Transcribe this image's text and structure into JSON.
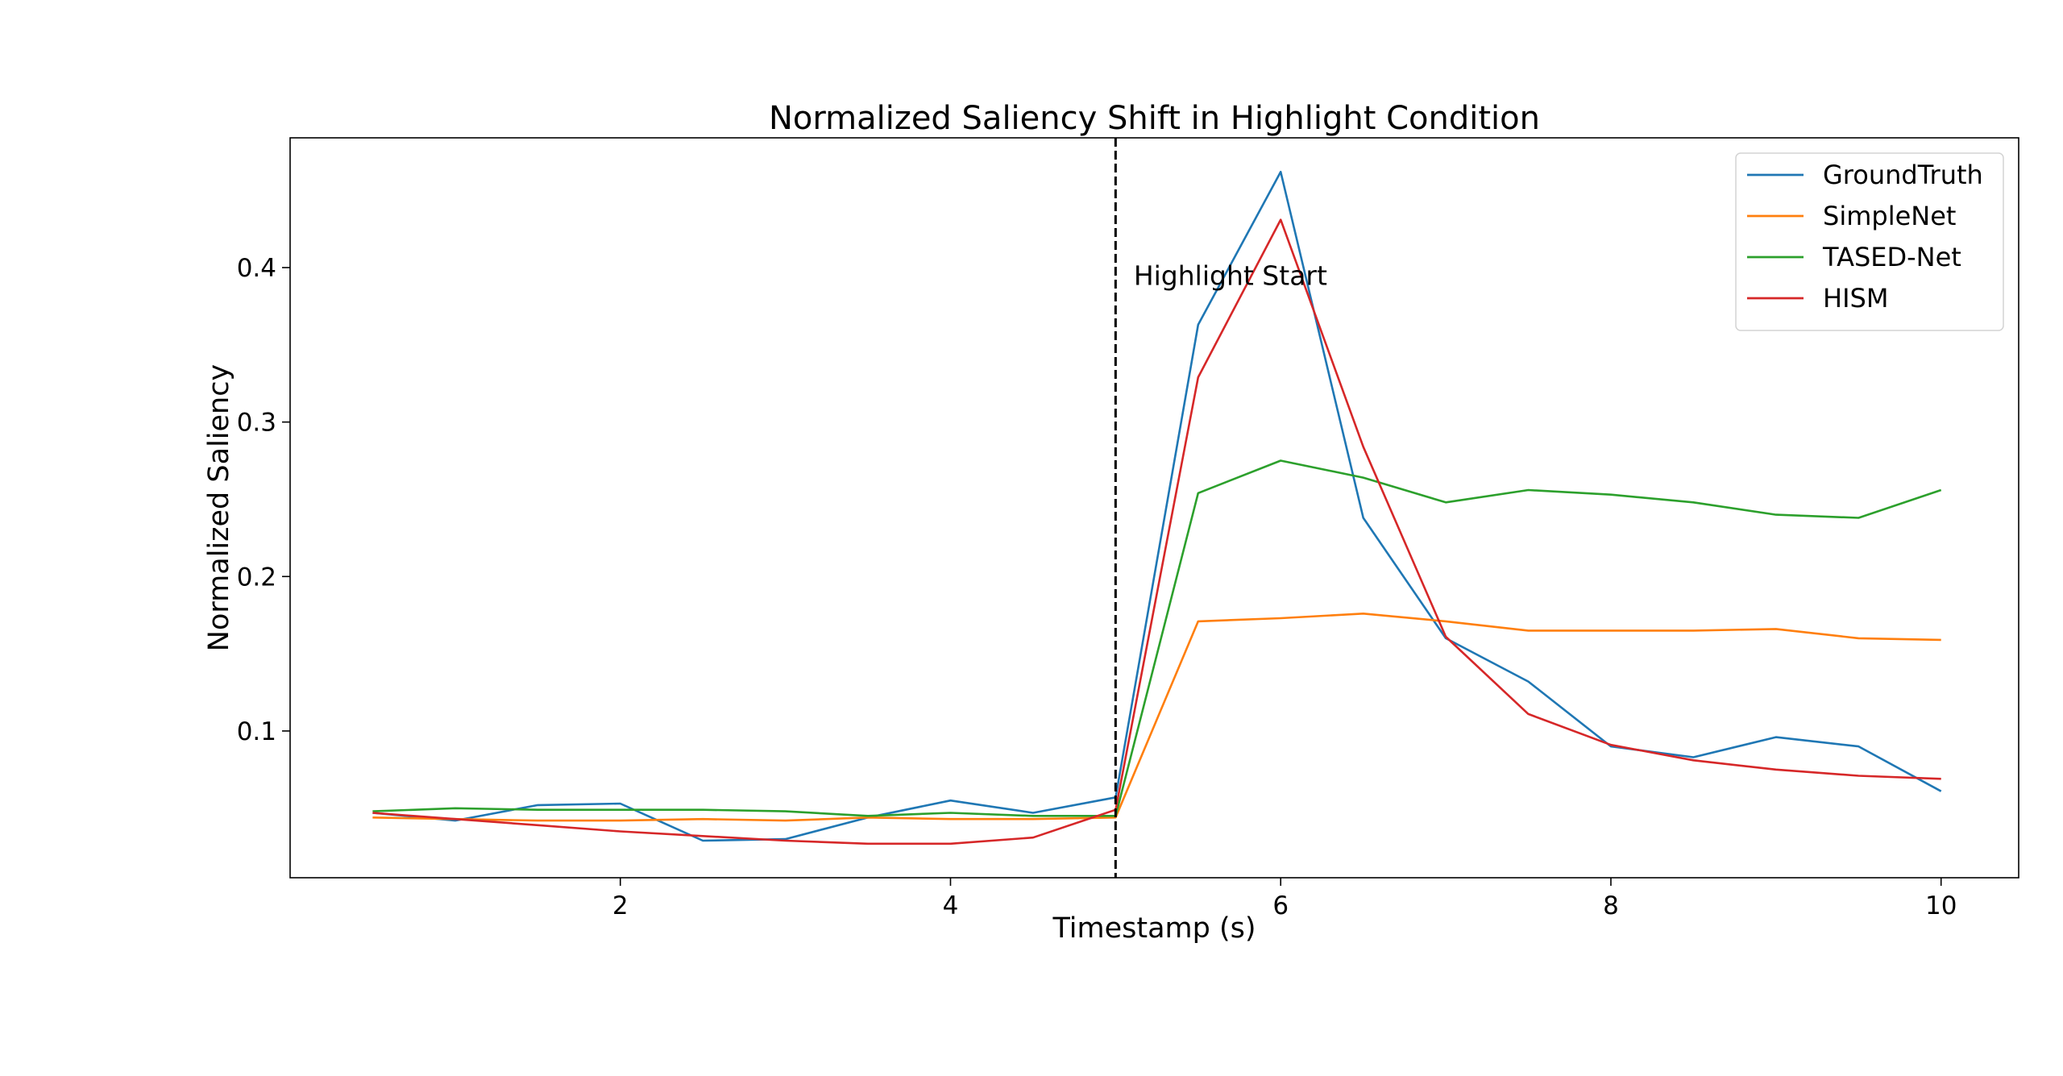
{
  "chart_data": {
    "type": "line",
    "title": "Normalized Saliency Shift in Highlight Condition",
    "xlabel": "Timestamp (s)",
    "ylabel": "Normalized Saliency",
    "xlim": [
      0.0,
      10.47
    ],
    "ylim": [
      0.005,
      0.484
    ],
    "xticks": [
      2,
      4,
      6,
      8,
      10
    ],
    "xtick_labels": [
      "2",
      "4",
      "6",
      "8",
      "10"
    ],
    "yticks": [
      0.1,
      0.2,
      0.3,
      0.4
    ],
    "ytick_labels": [
      "0.1",
      "0.2",
      "0.3",
      "0.4"
    ],
    "grid": false,
    "legend_position": "top-right",
    "x": [
      0.5,
      1.0,
      1.5,
      2.0,
      2.5,
      3.0,
      3.5,
      4.0,
      4.5,
      5.0,
      5.5,
      6.0,
      6.5,
      7.0,
      7.5,
      8.0,
      8.5,
      9.0,
      9.5,
      10.0
    ],
    "series": [
      {
        "name": "GroundTruth",
        "color": "#1f77b4",
        "values": [
          0.047,
          0.042,
          0.052,
          0.053,
          0.029,
          0.03,
          0.044,
          0.055,
          0.047,
          0.057,
          0.363,
          0.462,
          0.238,
          0.16,
          0.132,
          0.09,
          0.083,
          0.096,
          0.09,
          0.061
        ]
      },
      {
        "name": "SimpleNet",
        "color": "#ff7f0e",
        "values": [
          0.044,
          0.043,
          0.042,
          0.042,
          0.043,
          0.042,
          0.044,
          0.043,
          0.043,
          0.044,
          0.171,
          0.173,
          0.176,
          0.171,
          0.165,
          0.165,
          0.165,
          0.166,
          0.16,
          0.159
        ]
      },
      {
        "name": "TASED-Net",
        "color": "#2ca02c",
        "values": [
          0.048,
          0.05,
          0.049,
          0.049,
          0.049,
          0.048,
          0.045,
          0.047,
          0.045,
          0.045,
          0.254,
          0.275,
          0.264,
          0.248,
          0.256,
          0.253,
          0.248,
          0.24,
          0.238,
          0.256
        ]
      },
      {
        "name": "HISM",
        "color": "#d62728",
        "values": [
          0.047,
          0.043,
          0.039,
          0.035,
          0.032,
          0.029,
          0.027,
          0.027,
          0.031,
          0.049,
          0.329,
          0.431,
          0.284,
          0.161,
          0.111,
          0.091,
          0.081,
          0.075,
          0.071,
          0.069
        ]
      }
    ],
    "vline": {
      "x": 5.0,
      "style": "dashed",
      "color": "#000000"
    },
    "annotations": [
      {
        "text": "Highlight Start",
        "x": 5.1,
        "y": 0.395
      }
    ]
  }
}
